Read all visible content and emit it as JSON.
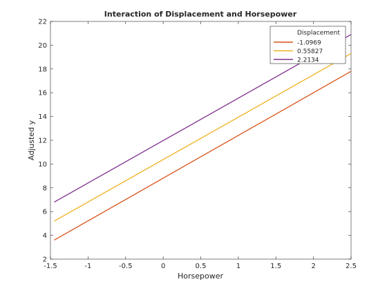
{
  "chart_data": {
    "type": "line",
    "title": "Interaction of Displacement and Horsepower",
    "xlabel": "Horsepower",
    "ylabel": "Adjusted y",
    "xlim": [
      -1.5,
      2.5
    ],
    "ylim": [
      2,
      22
    ],
    "xticks": [
      "-1.5",
      "-1",
      "-0.5",
      "0",
      "0.5",
      "1",
      "1.5",
      "2",
      "2.5"
    ],
    "yticks": [
      "2",
      "4",
      "6",
      "8",
      "10",
      "12",
      "14",
      "16",
      "18",
      "20",
      "22"
    ],
    "grid": false,
    "legend": {
      "title": "Displacement",
      "placement": "top-right"
    },
    "series": [
      {
        "name": "-1.0969",
        "color": "#d95319",
        "x": [
          -1.45,
          2.5
        ],
        "y": [
          3.6,
          17.8
        ]
      },
      {
        "name": "0.55827",
        "color": "#edb120",
        "x": [
          -1.45,
          2.5
        ],
        "y": [
          5.2,
          19.3
        ]
      },
      {
        "name": "2.2134",
        "color": "#7e2f8e",
        "x": [
          -1.45,
          2.5
        ],
        "y": [
          6.8,
          20.9
        ]
      }
    ]
  }
}
